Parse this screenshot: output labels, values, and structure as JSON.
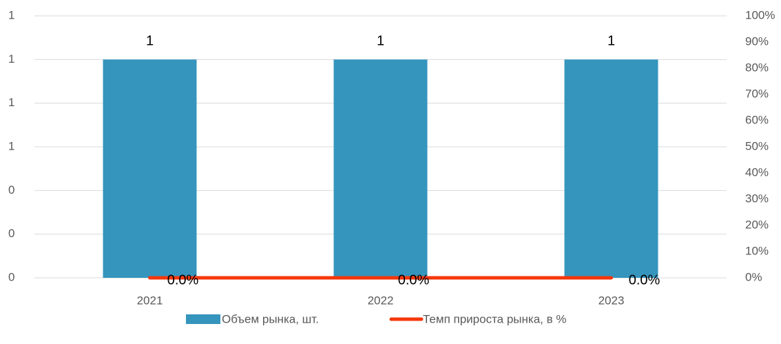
{
  "chart_data": {
    "type": "bar_line",
    "categories": [
      "2021",
      "2022",
      "2023"
    ],
    "series": [
      {
        "name": "Объем рынка, шт.",
        "color": "#3595bd",
        "values": [
          1,
          1,
          1
        ]
      },
      {
        "name": "Темп прироста рынка, в %",
        "color": "#f5370c",
        "values": [
          0,
          0,
          0
        ],
        "value_labels": [
          "0.0%",
          "0.0%",
          "0.0%"
        ],
        "axis": "y2"
      }
    ],
    "ylim": [
      0,
      1.2
    ],
    "yticks": [
      {
        "value": 0,
        "label": "0"
      },
      {
        "value": 0.2,
        "label": "0"
      },
      {
        "value": 0.4,
        "label": "0"
      },
      {
        "value": 0.6,
        "label": "1"
      },
      {
        "value": 0.8,
        "label": "1"
      },
      {
        "value": 1.0,
        "label": "1"
      },
      {
        "value": 1.2,
        "label": "1"
      }
    ],
    "y2lim": [
      0,
      100
    ],
    "y2ticks": [
      {
        "value": 0,
        "label": "0%"
      },
      {
        "value": 10,
        "label": "10%"
      },
      {
        "value": 20,
        "label": "20%"
      },
      {
        "value": 30,
        "label": "30%"
      },
      {
        "value": 40,
        "label": "40%"
      },
      {
        "value": 50,
        "label": "50%"
      },
      {
        "value": 60,
        "label": "60%"
      },
      {
        "value": 70,
        "label": "70%"
      },
      {
        "value": 80,
        "label": "80%"
      },
      {
        "value": 90,
        "label": "90%"
      },
      {
        "value": 100,
        "label": "100%"
      }
    ],
    "grid": true
  }
}
